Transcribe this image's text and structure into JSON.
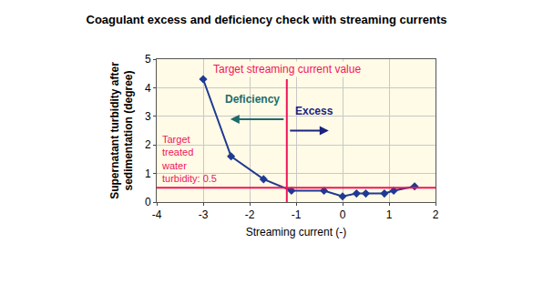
{
  "chart_data": {
    "type": "line",
    "title": "Coagulant excess and deficiency check with streaming currents",
    "x_label": "Streaming current (-)",
    "y_label_lines": [
      "Supernatant turbidity after",
      "sedimentation (degree)"
    ],
    "x": [
      -3.0,
      -2.4,
      -1.7,
      -1.1,
      -0.4,
      0.0,
      0.3,
      0.5,
      0.9,
      1.1,
      1.55
    ],
    "values": [
      4.3,
      1.6,
      0.8,
      0.4,
      0.4,
      0.2,
      0.3,
      0.3,
      0.3,
      0.4,
      0.55
    ],
    "color": "#1f3a93",
    "marker": "diamond",
    "line_style": "solid",
    "xlim": [
      -4,
      2
    ],
    "xticks": [
      -4,
      -3,
      -2,
      -1,
      0,
      1,
      2
    ],
    "ylim": [
      0,
      5
    ],
    "yticks": [
      0,
      1,
      2,
      3,
      4,
      5
    ],
    "grid": true,
    "target_streaming_current": {
      "label": "Target streaming current value",
      "value": -1.2,
      "color": "#f0145a"
    },
    "target_turbidity": {
      "label_lines": [
        "Target",
        "treated",
        "water",
        "turbidity: 0.5"
      ],
      "value": 0.5,
      "color": "#f0145a"
    },
    "deficiency": {
      "label": "Deficiency",
      "color": "#1e6b6b"
    },
    "excess": {
      "label": "Excess",
      "color": "#1a237e"
    }
  }
}
